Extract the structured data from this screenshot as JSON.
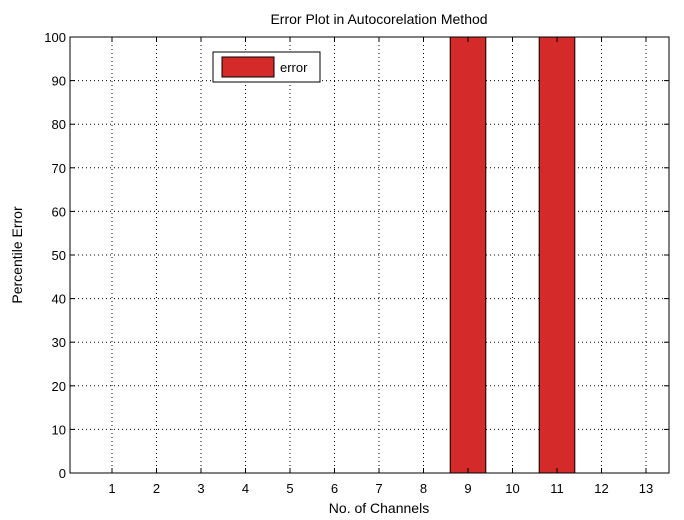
{
  "chart_data": {
    "type": "bar",
    "title": "Error Plot in Autocorelation Method",
    "xlabel": "No. of Channels",
    "ylabel": "Percentile Error",
    "categories": [
      "1",
      "2",
      "3",
      "4",
      "5",
      "6",
      "7",
      "8",
      "9",
      "10",
      "11",
      "12",
      "13"
    ],
    "series": [
      {
        "name": "error",
        "values": [
          0,
          0,
          0,
          0,
          0,
          0,
          0,
          0,
          100,
          0,
          100,
          0,
          0
        ],
        "color": "#d42a2a"
      }
    ],
    "ylim": [
      0,
      100
    ],
    "yticks": [
      0,
      10,
      20,
      30,
      40,
      50,
      60,
      70,
      80,
      90,
      100
    ],
    "grid": true,
    "grid_style": "dotted",
    "legend_position": "top-left",
    "bar_edge_color": "#000000"
  }
}
